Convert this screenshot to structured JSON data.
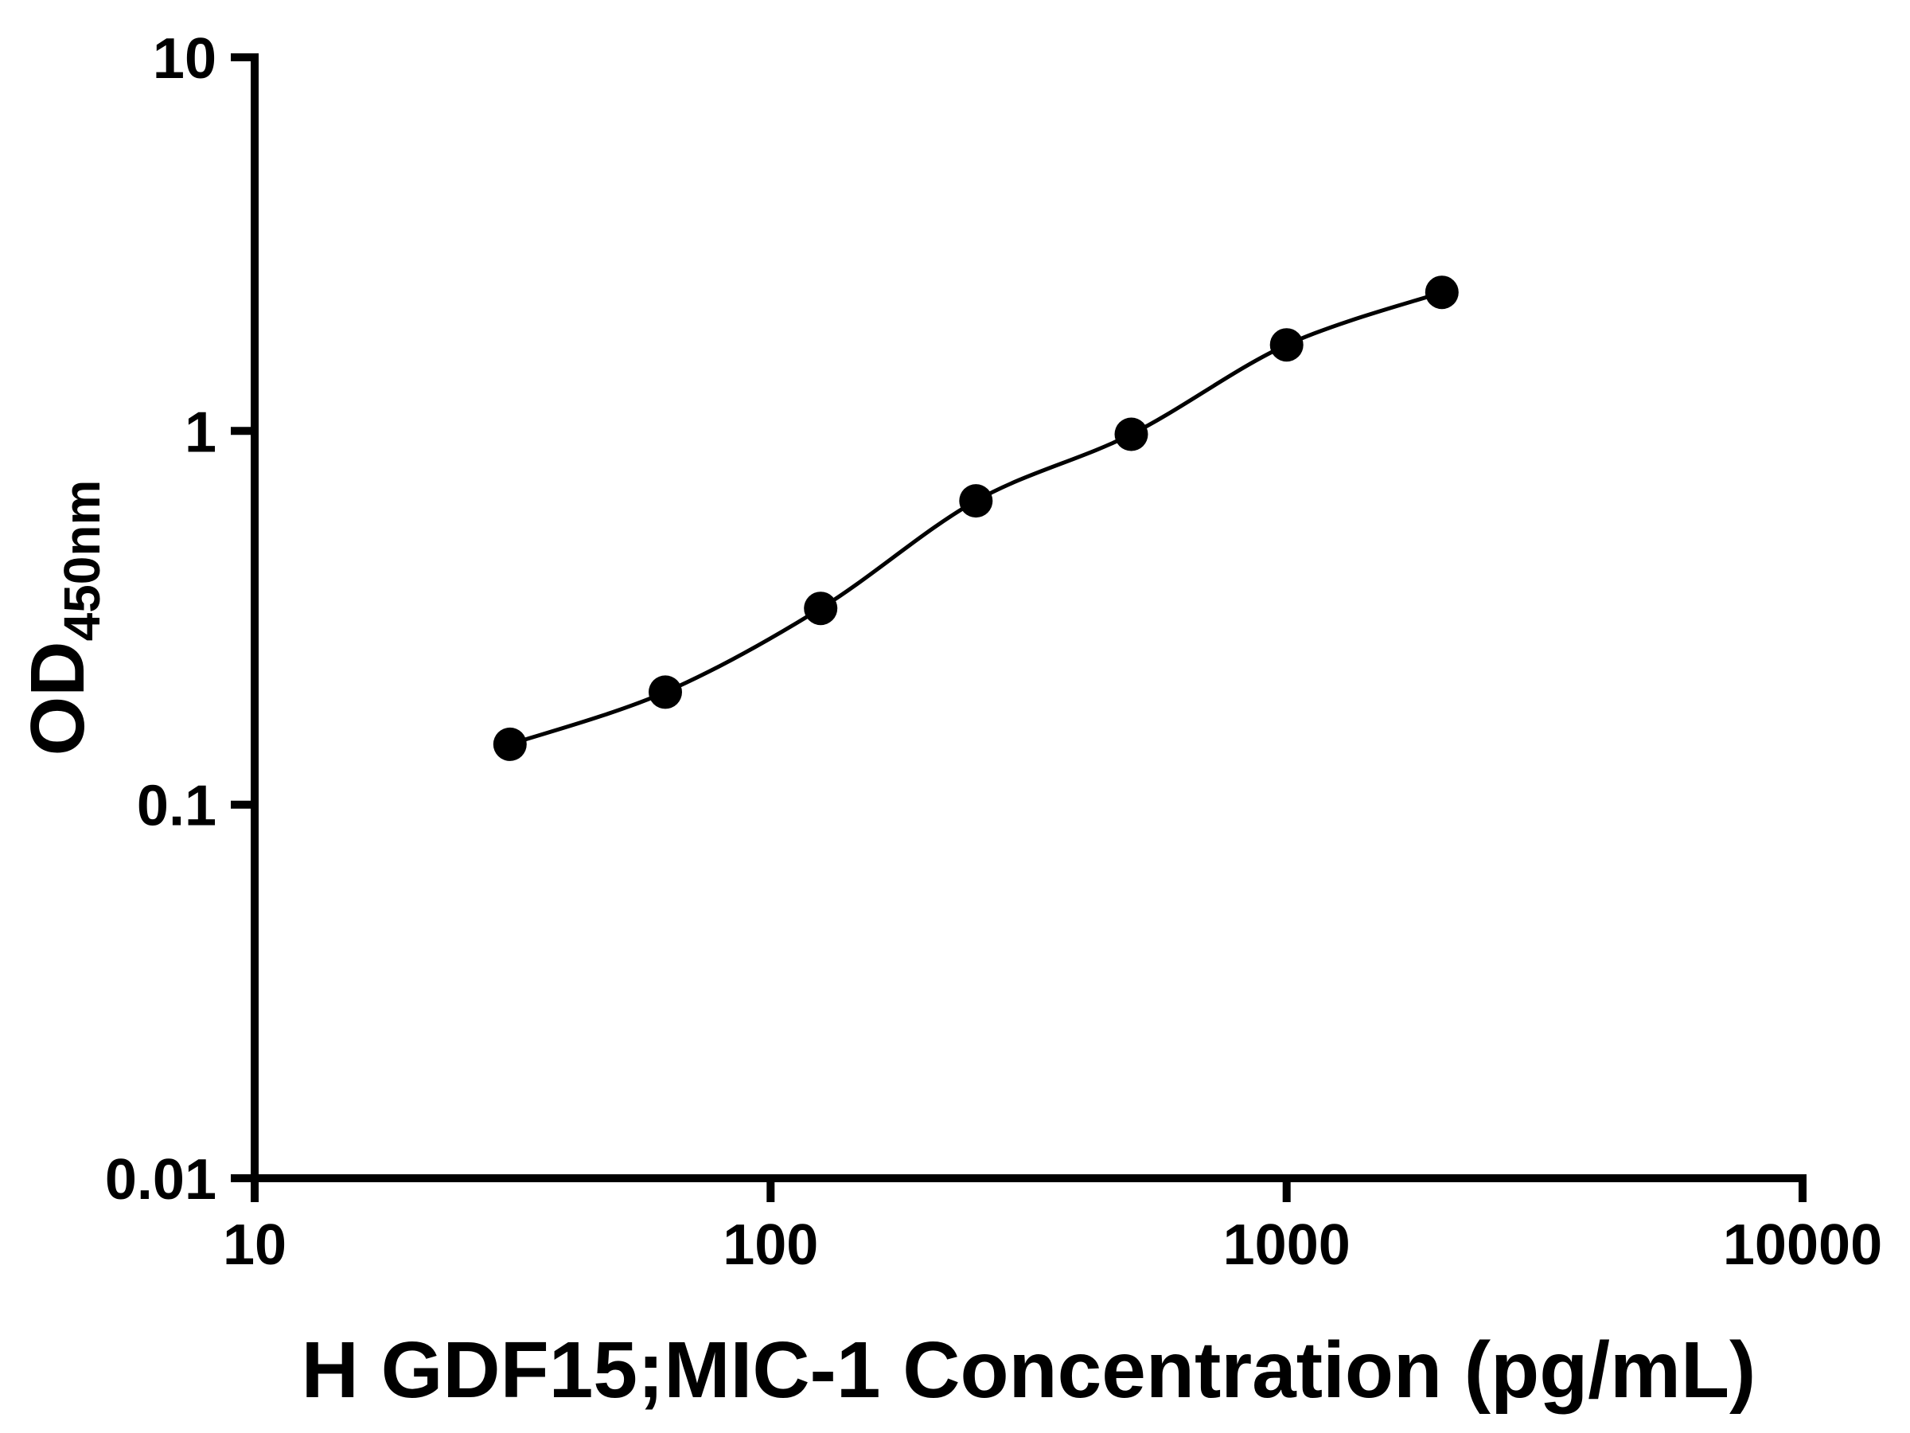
{
  "chart_data": {
    "type": "scatter",
    "title": "",
    "xlabel": "H GDF15;MIC-1 Concentration (pg/mL)",
    "ylabel_base": "OD",
    "ylabel_sub": "450nm",
    "x_scale": "log",
    "y_scale": "log",
    "xlim": [
      10,
      10000
    ],
    "ylim": [
      0.01,
      10
    ],
    "x_ticks": [
      10,
      100,
      1000,
      10000
    ],
    "x_tick_labels": [
      "10",
      "100",
      "1000",
      "10000"
    ],
    "y_ticks": [
      0.01,
      0.1,
      1,
      10
    ],
    "y_tick_labels": [
      "0.01",
      "0.1",
      "1",
      "10"
    ],
    "grid": "off",
    "legend": "none",
    "series": [
      {
        "name": "standard-curve",
        "marker": "filled-circle",
        "points": [
          {
            "x": 31.25,
            "y": 0.145
          },
          {
            "x": 62.5,
            "y": 0.2
          },
          {
            "x": 125,
            "y": 0.335
          },
          {
            "x": 250,
            "y": 0.65
          },
          {
            "x": 500,
            "y": 0.98
          },
          {
            "x": 1000,
            "y": 1.7
          },
          {
            "x": 2000,
            "y": 2.35
          }
        ]
      }
    ],
    "colors": {
      "axis": "#000000",
      "marker": "#000000",
      "line": "#000000",
      "background": "#ffffff"
    }
  }
}
